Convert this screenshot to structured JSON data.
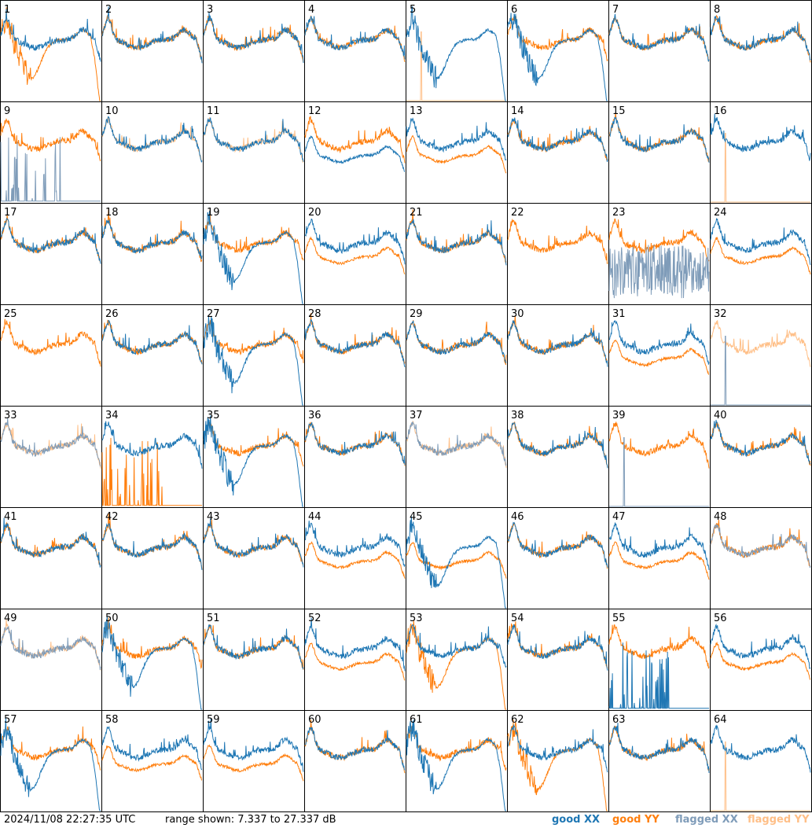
{
  "colors": {
    "good_xx": "#1f77b4",
    "good_yy": "#ff7f0e",
    "flagged_xx": "#7f9cb9",
    "flagged_yy": "#ffbf87"
  },
  "footer": {
    "timestamp": "2024/11/08 22:27:35 UTC",
    "range_text": "range shown: 7.337 to 27.337 dB"
  },
  "legend": {
    "good_xx": "good XX",
    "good_yy": "good YY",
    "flagged_xx": "flagged XX",
    "flagged_yy": "flagged YY"
  },
  "chart_data": {
    "type": "line",
    "title": "",
    "xlabel": "",
    "ylabel": "",
    "ylim": [
      7.337,
      27.337
    ],
    "units": "dB",
    "layout": "8x8 small multiples",
    "panels": [
      {
        "label": "1",
        "xx": "normal",
        "yy": "dip"
      },
      {
        "label": "2",
        "xx": "normal",
        "yy": "normal"
      },
      {
        "label": "3",
        "xx": "normal",
        "yy": "normal"
      },
      {
        "label": "4",
        "xx": "normal",
        "yy": "normal"
      },
      {
        "label": "5",
        "xx": "dip",
        "yy": "flagged_spike"
      },
      {
        "label": "6",
        "xx": "dip",
        "yy": "normal"
      },
      {
        "label": "7",
        "xx": "normal",
        "yy": "normal"
      },
      {
        "label": "8",
        "xx": "normal",
        "yy": "normal"
      },
      {
        "label": "9",
        "xx": "flagged_spikes",
        "yy": "normal"
      },
      {
        "label": "10",
        "xx": "normal",
        "yy": "flagged_low"
      },
      {
        "label": "11",
        "xx": "normal",
        "yy": "flagged_low"
      },
      {
        "label": "12",
        "xx": "low",
        "yy": "normal"
      },
      {
        "label": "13",
        "xx": "normal",
        "yy": "low"
      },
      {
        "label": "14",
        "xx": "normal",
        "yy": "normal"
      },
      {
        "label": "15",
        "xx": "normal",
        "yy": "normal"
      },
      {
        "label": "16",
        "xx": "normal",
        "yy": "flagged_spike"
      },
      {
        "label": "17",
        "xx": "normal",
        "yy": "normal"
      },
      {
        "label": "18",
        "xx": "normal",
        "yy": "normal"
      },
      {
        "label": "19",
        "xx": "dip",
        "yy": "normal"
      },
      {
        "label": "20",
        "xx": "normal",
        "yy": "low"
      },
      {
        "label": "21",
        "xx": "normal",
        "yy": "normal"
      },
      {
        "label": "22",
        "xx": "none",
        "yy": "normal"
      },
      {
        "label": "23",
        "xx": "flagged_noise",
        "yy": "normal"
      },
      {
        "label": "24",
        "xx": "normal",
        "yy": "low"
      },
      {
        "label": "25",
        "xx": "none",
        "yy": "normal"
      },
      {
        "label": "26",
        "xx": "normal",
        "yy": "normal"
      },
      {
        "label": "27",
        "xx": "dip",
        "yy": "normal"
      },
      {
        "label": "28",
        "xx": "normal",
        "yy": "normal"
      },
      {
        "label": "29",
        "xx": "normal",
        "yy": "normal"
      },
      {
        "label": "30",
        "xx": "normal",
        "yy": "normal"
      },
      {
        "label": "31",
        "xx": "normal",
        "yy": "low"
      },
      {
        "label": "32",
        "xx": "flagged_spike",
        "yy": "flagged_normal"
      },
      {
        "label": "33",
        "xx": "flagged_normal",
        "yy": "flagged_normal"
      },
      {
        "label": "34",
        "xx": "normal",
        "yy": "spikes"
      },
      {
        "label": "35",
        "xx": "dip",
        "yy": "normal"
      },
      {
        "label": "36",
        "xx": "normal",
        "yy": "normal"
      },
      {
        "label": "37",
        "xx": "flagged_normal",
        "yy": "flagged_normal"
      },
      {
        "label": "38",
        "xx": "normal",
        "yy": "normal"
      },
      {
        "label": "39",
        "xx": "flagged_spike",
        "yy": "normal"
      },
      {
        "label": "40",
        "xx": "normal",
        "yy": "normal"
      },
      {
        "label": "41",
        "xx": "normal",
        "yy": "normal"
      },
      {
        "label": "42",
        "xx": "normal",
        "yy": "normal"
      },
      {
        "label": "43",
        "xx": "normal",
        "yy": "normal"
      },
      {
        "label": "44",
        "xx": "normal",
        "yy": "low"
      },
      {
        "label": "45",
        "xx": "dip",
        "yy": "low"
      },
      {
        "label": "46",
        "xx": "normal",
        "yy": "normal"
      },
      {
        "label": "47",
        "xx": "normal",
        "yy": "low"
      },
      {
        "label": "48",
        "xx": "flagged_dip",
        "yy": "normal"
      },
      {
        "label": "49",
        "xx": "flagged_normal",
        "yy": "flagged_normal"
      },
      {
        "label": "50",
        "xx": "dip",
        "yy": "normal"
      },
      {
        "label": "51",
        "xx": "normal",
        "yy": "normal"
      },
      {
        "label": "52",
        "xx": "normal",
        "yy": "low"
      },
      {
        "label": "53",
        "xx": "normal",
        "yy": "dip"
      },
      {
        "label": "54",
        "xx": "normal",
        "yy": "normal"
      },
      {
        "label": "55",
        "xx": "spikes",
        "yy": "normal"
      },
      {
        "label": "56",
        "xx": "normal",
        "yy": "low"
      },
      {
        "label": "57",
        "xx": "dip",
        "yy": "normal"
      },
      {
        "label": "58",
        "xx": "normal",
        "yy": "low"
      },
      {
        "label": "59",
        "xx": "normal",
        "yy": "low"
      },
      {
        "label": "60",
        "xx": "normal",
        "yy": "normal"
      },
      {
        "label": "61",
        "xx": "dip",
        "yy": "normal"
      },
      {
        "label": "62",
        "xx": "normal",
        "yy": "dip"
      },
      {
        "label": "63",
        "xx": "normal",
        "yy": "normal"
      },
      {
        "label": "64",
        "xx": "normal",
        "yy": "flagged_spike"
      }
    ]
  }
}
